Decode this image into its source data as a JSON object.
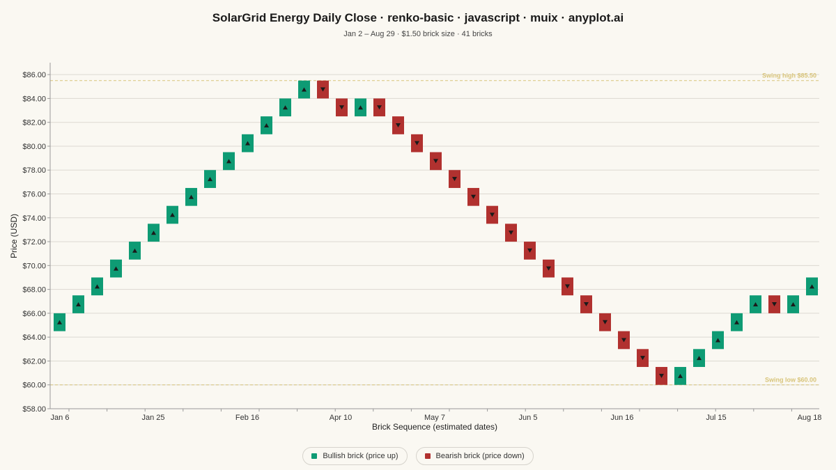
{
  "page": {
    "title": "SolarGrid Energy Daily Close · renko-basic · javascript · muix · anyplot.ai",
    "subtitle": "Jan 2 – Aug 29 · $1.50 brick size · 41 bricks"
  },
  "colors": {
    "bullish": "#0e9b74",
    "bearish": "#b1312f",
    "reference": "#d8c47a",
    "grid": "#dcd9d1",
    "axis": "#999999",
    "text": "#333333"
  },
  "legend": {
    "bullish_label": "Bullish brick (price up)",
    "bearish_label": "Bearish brick (price down)"
  },
  "chart_data": {
    "type": "renko",
    "xlabel": "Brick Sequence (estimated dates)",
    "ylabel": "Price (USD)",
    "ylim": [
      58,
      87
    ],
    "yticks": [
      58,
      60,
      62,
      64,
      66,
      68,
      70,
      72,
      74,
      76,
      78,
      80,
      82,
      84,
      86
    ],
    "ytick_labels": [
      "$58.00",
      "$60.00",
      "$62.00",
      "$64.00",
      "$66.00",
      "$68.00",
      "$70.00",
      "$72.00",
      "$74.00",
      "$76.00",
      "$78.00",
      "$80.00",
      "$82.00",
      "$84.00",
      "$86.00"
    ],
    "brick_size": 1.5,
    "brick_count": 41,
    "xtick_labels": [
      {
        "index": 0,
        "label": "Jan 6"
      },
      {
        "index": 5,
        "label": "Jan 25"
      },
      {
        "index": 10,
        "label": "Feb 16"
      },
      {
        "index": 15,
        "label": "Apr 10"
      },
      {
        "index": 20,
        "label": "May 7"
      },
      {
        "index": 25,
        "label": "Jun 5"
      },
      {
        "index": 30,
        "label": "Jun 16"
      },
      {
        "index": 35,
        "label": "Jul 15"
      },
      {
        "index": 40,
        "label": "Aug 18"
      }
    ],
    "bricks": [
      {
        "open": 64.5,
        "close": 66.0,
        "direction": "up"
      },
      {
        "open": 66.0,
        "close": 67.5,
        "direction": "up"
      },
      {
        "open": 67.5,
        "close": 69.0,
        "direction": "up"
      },
      {
        "open": 69.0,
        "close": 70.5,
        "direction": "up"
      },
      {
        "open": 70.5,
        "close": 72.0,
        "direction": "up"
      },
      {
        "open": 72.0,
        "close": 73.5,
        "direction": "up"
      },
      {
        "open": 73.5,
        "close": 75.0,
        "direction": "up"
      },
      {
        "open": 75.0,
        "close": 76.5,
        "direction": "up"
      },
      {
        "open": 76.5,
        "close": 78.0,
        "direction": "up"
      },
      {
        "open": 78.0,
        "close": 79.5,
        "direction": "up"
      },
      {
        "open": 79.5,
        "close": 81.0,
        "direction": "up"
      },
      {
        "open": 81.0,
        "close": 82.5,
        "direction": "up"
      },
      {
        "open": 82.5,
        "close": 84.0,
        "direction": "up"
      },
      {
        "open": 84.0,
        "close": 85.5,
        "direction": "up"
      },
      {
        "open": 85.5,
        "close": 84.0,
        "direction": "down"
      },
      {
        "open": 84.0,
        "close": 82.5,
        "direction": "down"
      },
      {
        "open": 82.5,
        "close": 84.0,
        "direction": "up"
      },
      {
        "open": 84.0,
        "close": 82.5,
        "direction": "down"
      },
      {
        "open": 82.5,
        "close": 81.0,
        "direction": "down"
      },
      {
        "open": 81.0,
        "close": 79.5,
        "direction": "down"
      },
      {
        "open": 79.5,
        "close": 78.0,
        "direction": "down"
      },
      {
        "open": 78.0,
        "close": 76.5,
        "direction": "down"
      },
      {
        "open": 76.5,
        "close": 75.0,
        "direction": "down"
      },
      {
        "open": 75.0,
        "close": 73.5,
        "direction": "down"
      },
      {
        "open": 73.5,
        "close": 72.0,
        "direction": "down"
      },
      {
        "open": 72.0,
        "close": 70.5,
        "direction": "down"
      },
      {
        "open": 70.5,
        "close": 69.0,
        "direction": "down"
      },
      {
        "open": 69.0,
        "close": 67.5,
        "direction": "down"
      },
      {
        "open": 67.5,
        "close": 66.0,
        "direction": "down"
      },
      {
        "open": 66.0,
        "close": 64.5,
        "direction": "down"
      },
      {
        "open": 64.5,
        "close": 63.0,
        "direction": "down"
      },
      {
        "open": 63.0,
        "close": 61.5,
        "direction": "down"
      },
      {
        "open": 61.5,
        "close": 60.0,
        "direction": "down"
      },
      {
        "open": 60.0,
        "close": 61.5,
        "direction": "up"
      },
      {
        "open": 61.5,
        "close": 63.0,
        "direction": "up"
      },
      {
        "open": 63.0,
        "close": 64.5,
        "direction": "up"
      },
      {
        "open": 64.5,
        "close": 66.0,
        "direction": "up"
      },
      {
        "open": 66.0,
        "close": 67.5,
        "direction": "up"
      },
      {
        "open": 67.5,
        "close": 66.0,
        "direction": "down"
      },
      {
        "open": 66.0,
        "close": 67.5,
        "direction": "up"
      },
      {
        "open": 67.5,
        "close": 69.0,
        "direction": "up"
      }
    ],
    "reference_lines": [
      {
        "value": 85.5,
        "label": "Swing high $85.50"
      },
      {
        "value": 60.0,
        "label": "Swing low $60.00"
      }
    ],
    "grid": true,
    "legend_position": "bottom-center"
  }
}
